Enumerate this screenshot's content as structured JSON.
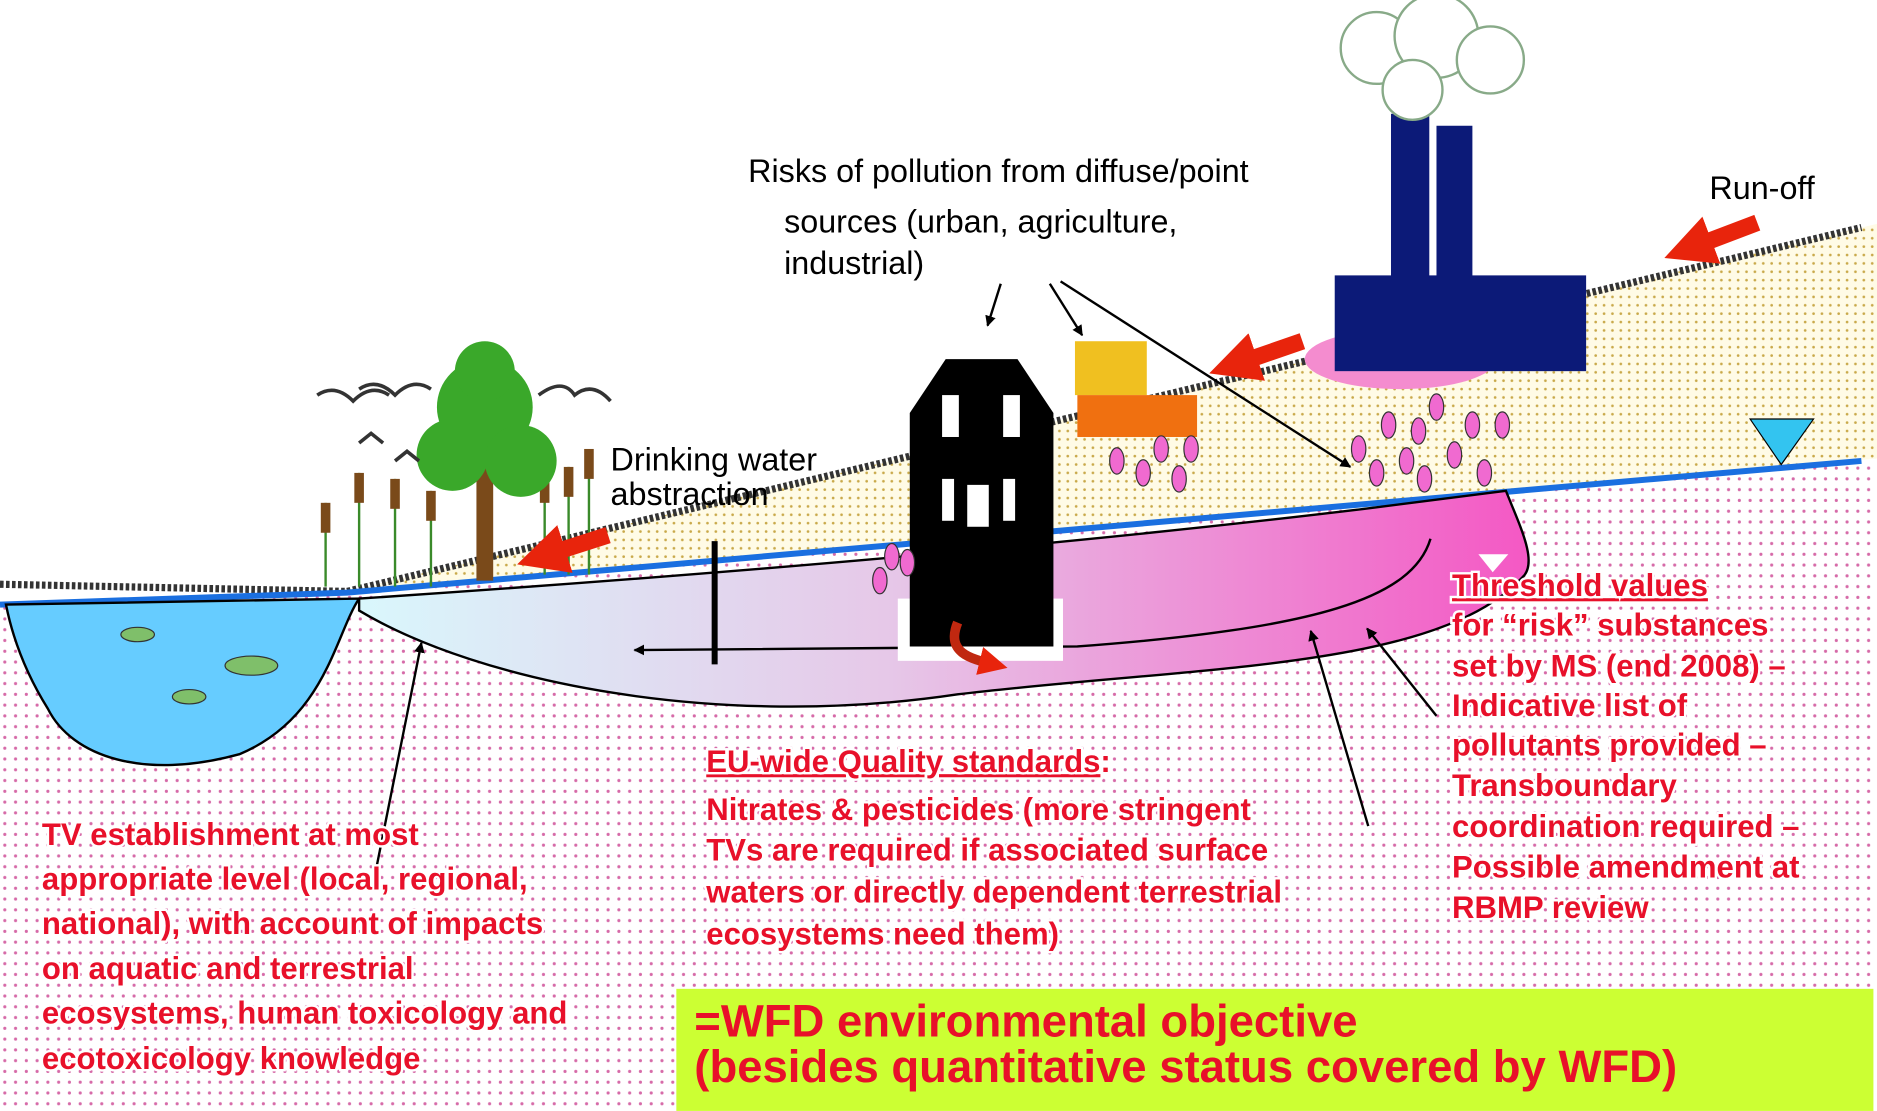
{
  "pollution_label": {
    "lines": [
      "Risks of pollution from diffuse/point",
      "sources (urban, agriculture,",
      "industrial)"
    ]
  },
  "runoff_label": "Run-off",
  "abstraction_label": {
    "lines": [
      "Drinking water",
      "abstraction"
    ]
  },
  "threshold_note": {
    "title": "Threshold values",
    "lines": [
      "for “risk” substances",
      "set by MS (end 2008) –",
      "Indicative list of",
      "pollutants provided –",
      "Transboundary",
      "coordination required –",
      "Possible amendment at",
      "RBMP review"
    ]
  },
  "quality_standards_note": {
    "title": "EU-wide Quality standards",
    "title_suffix": ":",
    "lines": [
      "Nitrates & pesticides (more stringent",
      "TVs are required if associated surface",
      "waters or directly dependent terrestrial",
      "ecosystems need them)"
    ]
  },
  "tv_note": {
    "lines": [
      "TV establishment at most",
      "appropriate level (local, regional,",
      "national), with account of impacts",
      "on aquatic and terrestrial",
      "ecosystems, human toxicology and",
      "ecotoxicology knowledge"
    ]
  },
  "objective_banner": {
    "lines": [
      "=WFD environmental objective",
      "(besides quantitative status covered by WFD)"
    ]
  }
}
